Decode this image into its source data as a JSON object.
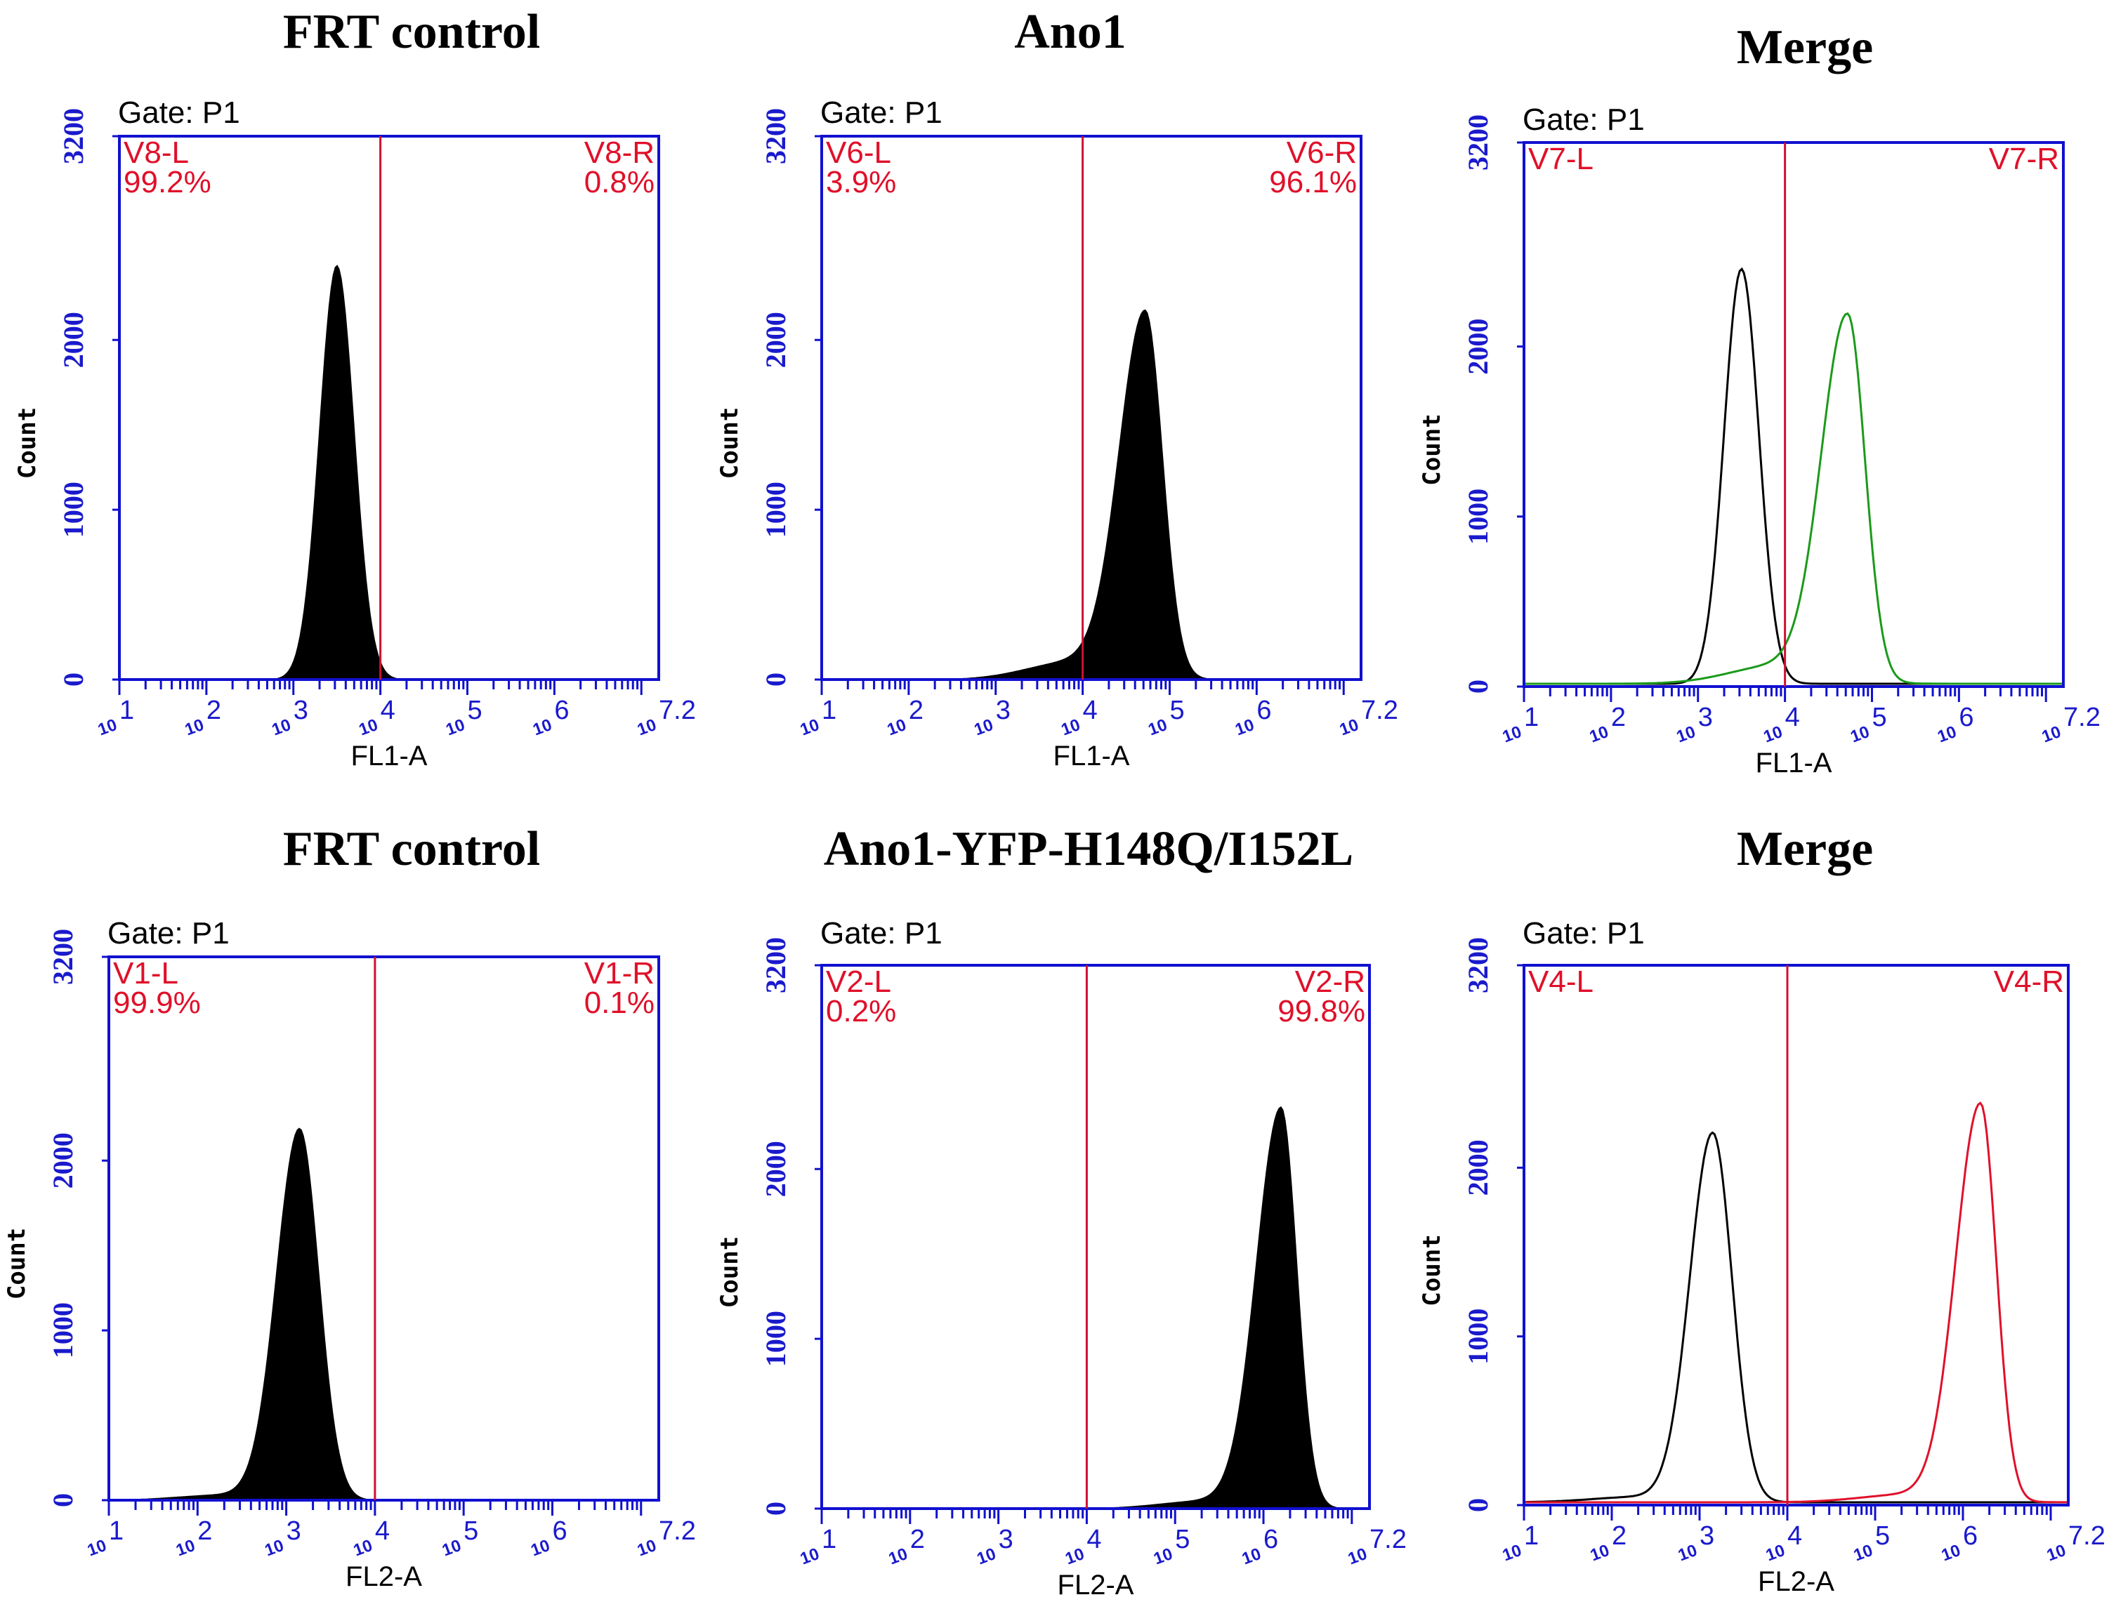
{
  "chart_data": [
    {
      "type": "histogram",
      "title": "FRT control",
      "gate": "Gate: P1",
      "xlabel": "FL1-A",
      "ylabel": "Count",
      "ylim": [
        0,
        3200
      ],
      "yticks": [
        "0",
        "1000",
        "2000",
        "3200"
      ],
      "xscale": "log10",
      "xlim_log10": [
        1,
        7.2
      ],
      "xtick_exponents": [
        "1",
        "2",
        "3",
        "4",
        "5",
        "6",
        "7.2"
      ],
      "marker_log10": 4.0,
      "regions": [
        {
          "name": "V8-L",
          "percent": "99.2%"
        },
        {
          "name": "V8-R",
          "percent": "0.8%"
        }
      ],
      "series": [
        {
          "name": "FRT control",
          "style": "filled",
          "color": "#000000",
          "peak_log10": 3.5,
          "peak_count": 2440,
          "sd_left": 0.2,
          "sd_right": 0.2
        }
      ]
    },
    {
      "type": "histogram",
      "title": "Ano1",
      "gate": "Gate: P1",
      "xlabel": "FL1-A",
      "ylabel": "Count",
      "ylim": [
        0,
        3200
      ],
      "yticks": [
        "0",
        "1000",
        "2000",
        "3200"
      ],
      "xscale": "log10",
      "xlim_log10": [
        1,
        7.2
      ],
      "xtick_exponents": [
        "1",
        "2",
        "3",
        "4",
        "5",
        "6",
        "7.2"
      ],
      "marker_log10": 4.0,
      "regions": [
        {
          "name": "V6-L",
          "percent": "3.9%"
        },
        {
          "name": "V6-R",
          "percent": "96.1%"
        }
      ],
      "series": [
        {
          "name": "Ano1",
          "style": "filled",
          "color": "#000000",
          "peak_log10": 4.72,
          "peak_count": 2140,
          "sd_left": 0.3,
          "sd_right": 0.2,
          "tail": 0.05
        }
      ]
    },
    {
      "type": "histogram",
      "title": "Merge",
      "gate": "Gate: P1",
      "xlabel": "FL1-A",
      "ylabel": "Count",
      "ylim": [
        0,
        3200
      ],
      "yticks": [
        "0",
        "1000",
        "2000",
        "3200"
      ],
      "xscale": "log10",
      "xlim_log10": [
        1,
        7.2
      ],
      "xtick_exponents": [
        "1",
        "2",
        "3",
        "4",
        "5",
        "6",
        "7.2"
      ],
      "marker_log10": 4.0,
      "regions": [
        {
          "name": "V7-L",
          "percent": ""
        },
        {
          "name": "V7-R",
          "percent": ""
        }
      ],
      "series": [
        {
          "name": "FRT control",
          "style": "line",
          "color": "#000000",
          "peak_log10": 3.5,
          "peak_count": 2440,
          "sd_left": 0.2,
          "sd_right": 0.2
        },
        {
          "name": "Ano1",
          "style": "line",
          "color": "#1a9a1a",
          "peak_log10": 4.72,
          "peak_count": 2140,
          "sd_left": 0.3,
          "sd_right": 0.2,
          "tail": 0.05
        }
      ]
    },
    {
      "type": "histogram",
      "title": "FRT control",
      "gate": "Gate: P1",
      "xlabel": "FL2-A",
      "ylabel": "Count",
      "ylim": [
        0,
        3200
      ],
      "yticks": [
        "0",
        "1000",
        "2000",
        "3200"
      ],
      "xscale": "log10",
      "xlim_log10": [
        1,
        7.2
      ],
      "xtick_exponents": [
        "1",
        "2",
        "3",
        "4",
        "5",
        "6",
        "7.2"
      ],
      "marker_log10": 4.0,
      "regions": [
        {
          "name": "V1-L",
          "percent": "99.9%"
        },
        {
          "name": "V1-R",
          "percent": "0.1%"
        }
      ],
      "series": [
        {
          "name": "FRT control",
          "style": "filled",
          "color": "#000000",
          "peak_log10": 3.15,
          "peak_count": 2180,
          "sd_left": 0.26,
          "sd_right": 0.22,
          "tail": 0.015
        }
      ]
    },
    {
      "type": "histogram",
      "title": "Ano1-YFP-H148Q/I152L",
      "gate": "Gate: P1",
      "xlabel": "FL2-A",
      "ylabel": "Count",
      "ylim": [
        0,
        3200
      ],
      "yticks": [
        "0",
        "1000",
        "2000",
        "3200"
      ],
      "xscale": "log10",
      "xlim_log10": [
        1,
        7.2
      ],
      "xtick_exponents": [
        "1",
        "2",
        "3",
        "4",
        "5",
        "6",
        "7.2"
      ],
      "marker_log10": 4.0,
      "regions": [
        {
          "name": "V2-L",
          "percent": "0.2%"
        },
        {
          "name": "V2-R",
          "percent": "99.8%"
        }
      ],
      "series": [
        {
          "name": "Ano1-YFP-H148Q/I152L",
          "style": "filled",
          "color": "#000000",
          "peak_log10": 6.2,
          "peak_count": 2350,
          "sd_left": 0.28,
          "sd_right": 0.18,
          "tail": 0.02
        }
      ]
    },
    {
      "type": "histogram",
      "title": "Merge",
      "gate": "Gate: P1",
      "xlabel": "FL2-A",
      "ylabel": "Count",
      "ylim": [
        0,
        3200
      ],
      "yticks": [
        "0",
        "1000",
        "2000",
        "3200"
      ],
      "xscale": "log10",
      "xlim_log10": [
        1,
        7.2
      ],
      "xtick_exponents": [
        "1",
        "2",
        "3",
        "4",
        "5",
        "6",
        "7.2"
      ],
      "marker_log10": 4.0,
      "regions": [
        {
          "name": "V4-L",
          "percent": ""
        },
        {
          "name": "V4-R",
          "percent": ""
        }
      ],
      "series": [
        {
          "name": "FRT control",
          "style": "line",
          "color": "#000000",
          "peak_log10": 3.15,
          "peak_count": 2180,
          "sd_left": 0.26,
          "sd_right": 0.22,
          "tail": 0.015
        },
        {
          "name": "Ano1-YFP-H148Q/I152L",
          "style": "line",
          "color": "#e0102a",
          "peak_log10": 6.2,
          "peak_count": 2350,
          "sd_left": 0.28,
          "sd_right": 0.18,
          "tail": 0.02
        }
      ]
    }
  ]
}
